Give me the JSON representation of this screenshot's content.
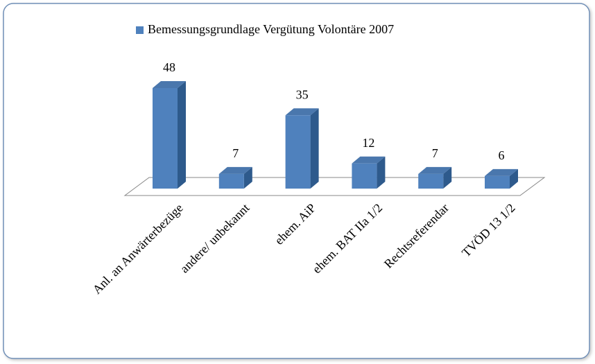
{
  "chart_data": {
    "type": "bar3d",
    "series": [
      {
        "name": "Bemessungsgrundlage Vergütung Volontäre 2007",
        "color": "#4f81bd",
        "values": [
          48,
          7,
          35,
          12,
          7,
          6
        ]
      }
    ],
    "categories": [
      "Anl. an Anwärterbezüge",
      "andere/ unbekannt",
      "ehem. AiP",
      "ehem. BAT IIa 1/2",
      "Rechtsreferendar",
      "TVÖD 13 1/2"
    ]
  }
}
